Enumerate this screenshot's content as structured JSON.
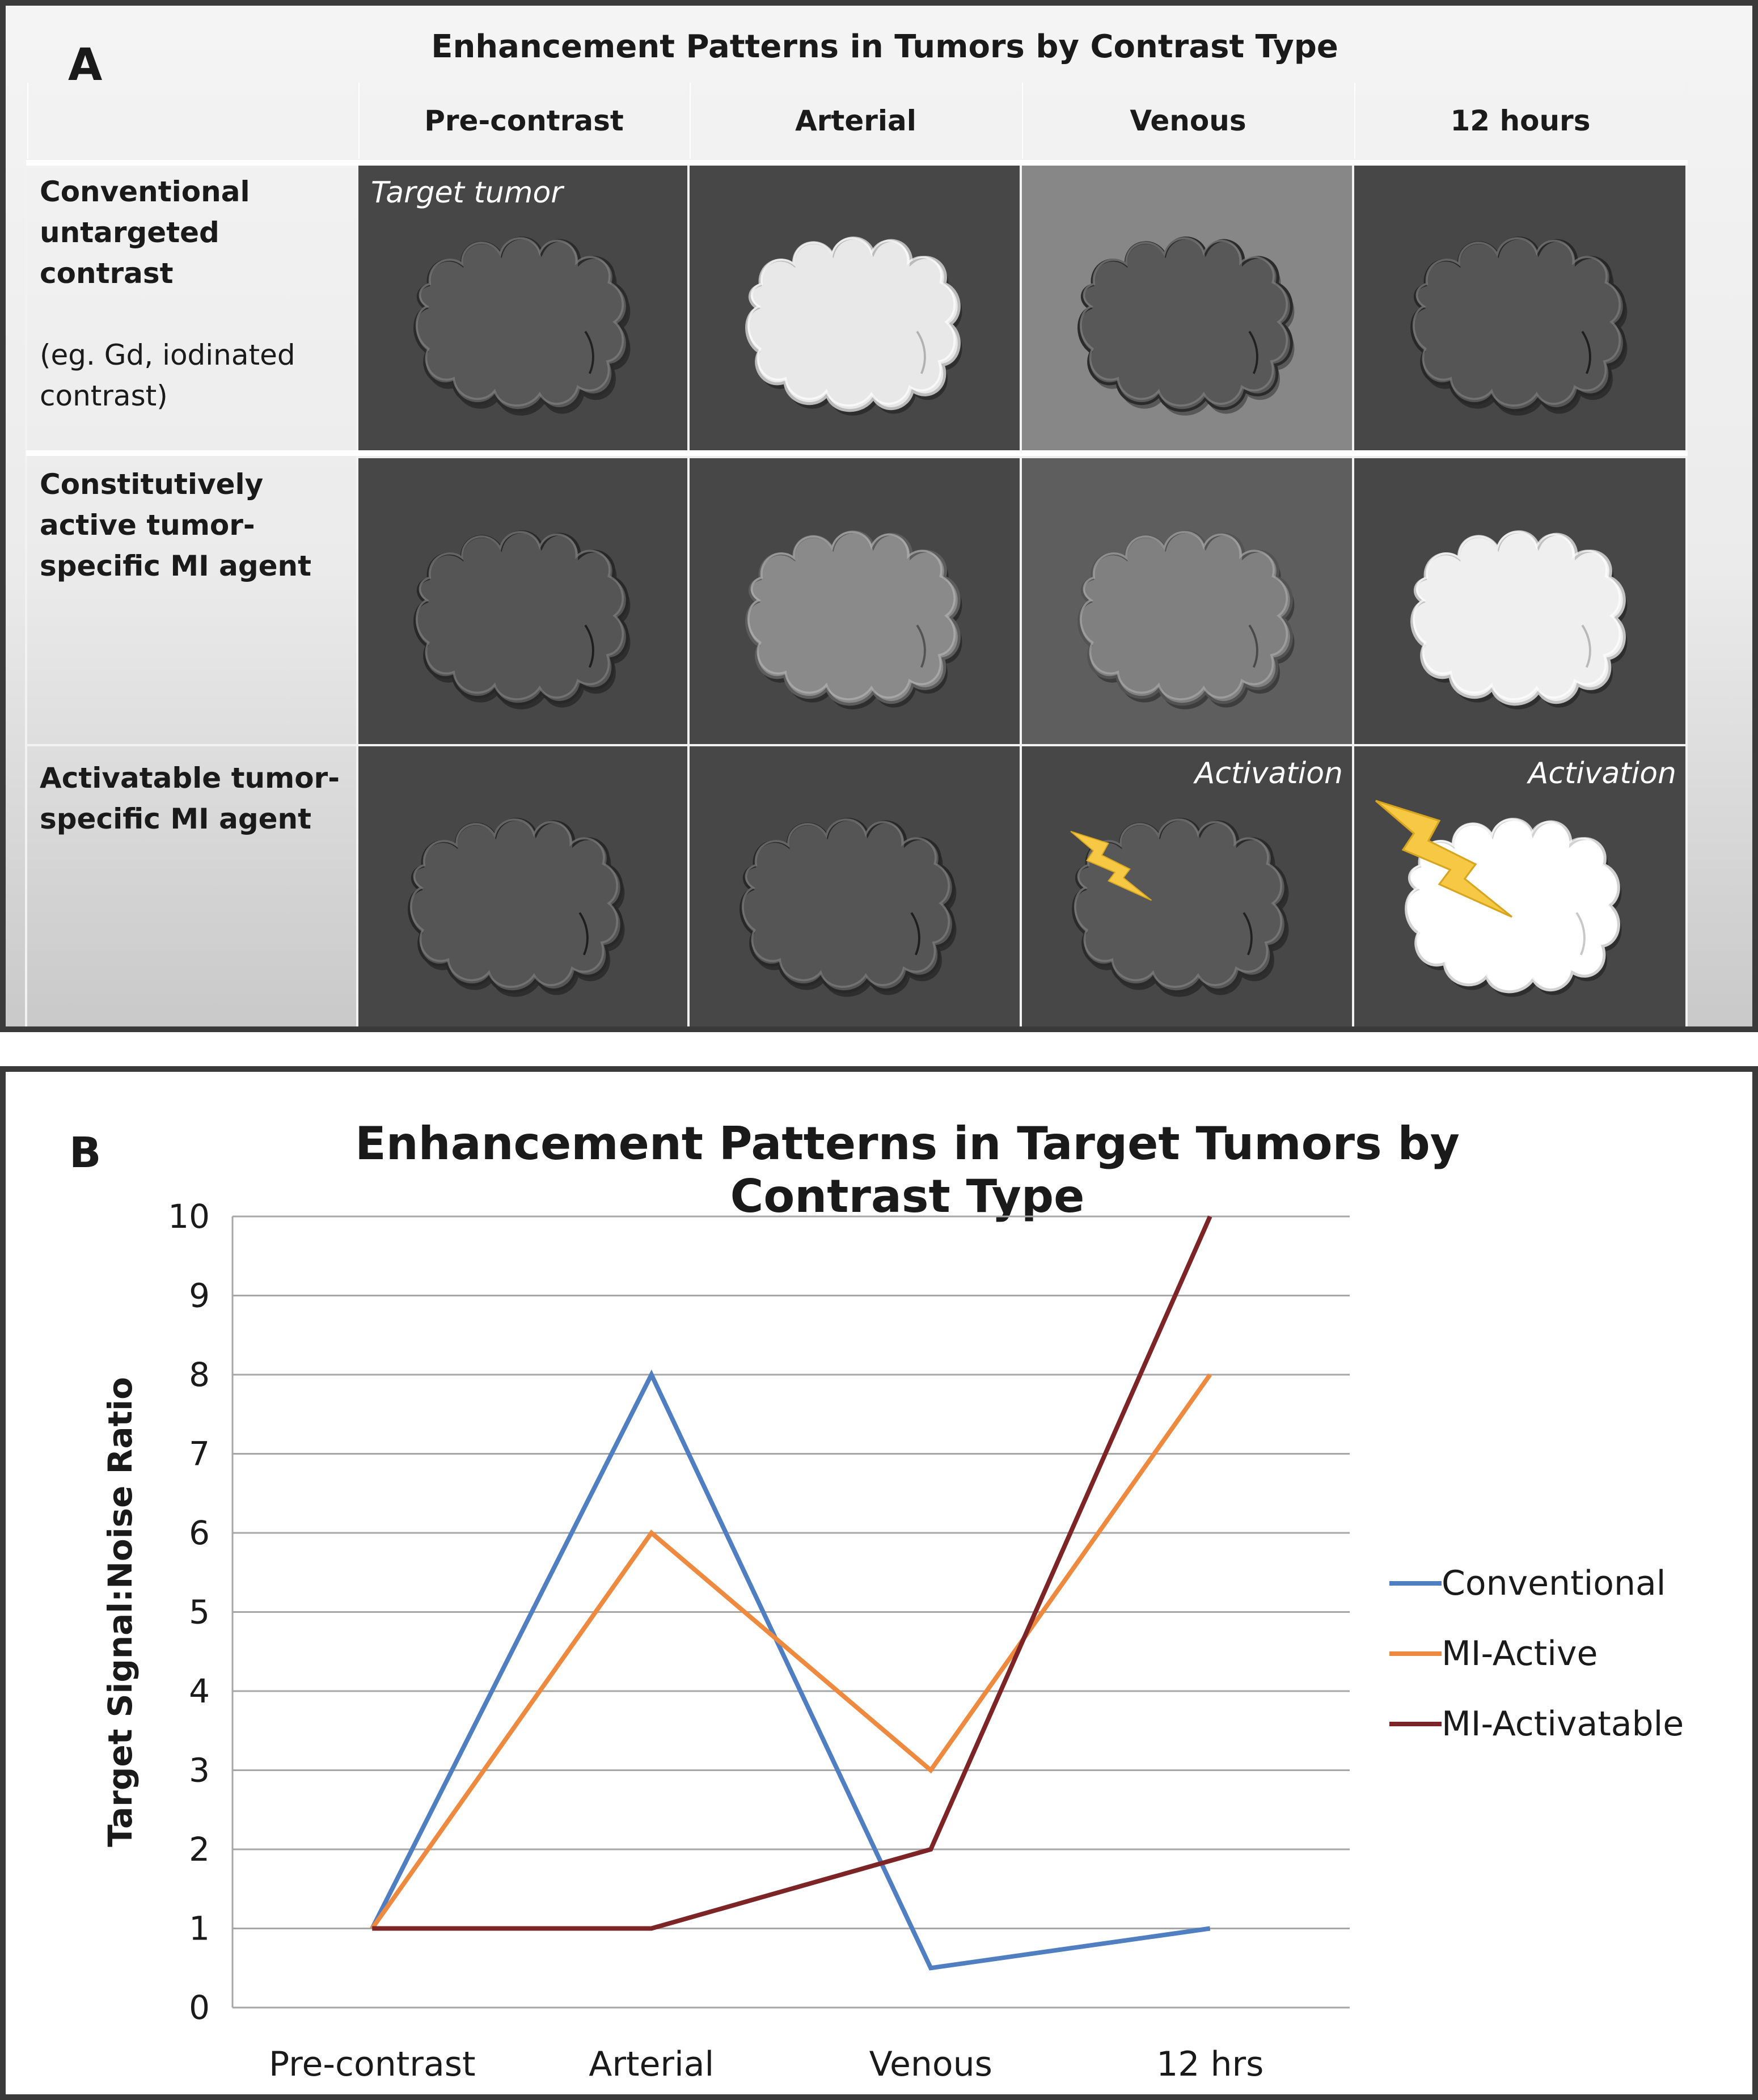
{
  "panel_a": {
    "letter": "A",
    "title": "Enhancement Patterns in Tumors by Contrast Type",
    "columns": [
      "Pre-contrast",
      "Arterial",
      "Venous",
      "12 hours"
    ],
    "rows": [
      {
        "label": "Conventional untargeted contrast",
        "sublabel": "(eg. Gd, iodinated contrast)",
        "cells": [
          {
            "bg": "#474747",
            "tumor": "#585858",
            "note": "Target tumor",
            "flash": false
          },
          {
            "bg": "#474747",
            "tumor": "#e8e8e8",
            "note": "",
            "flash": false
          },
          {
            "bg": "#878787",
            "tumor": "#585858",
            "note": "",
            "flash": false
          },
          {
            "bg": "#474747",
            "tumor": "#555555",
            "note": "",
            "flash": false
          }
        ]
      },
      {
        "label": "Constitutively active tumor-specific MI agent",
        "sublabel": "",
        "cells": [
          {
            "bg": "#474747",
            "tumor": "#555555",
            "note": "",
            "flash": false
          },
          {
            "bg": "#474747",
            "tumor": "#8a8a8a",
            "note": "",
            "flash": false
          },
          {
            "bg": "#5e5e5e",
            "tumor": "#808080",
            "note": "",
            "flash": false
          },
          {
            "bg": "#474747",
            "tumor": "#efefef",
            "note": "",
            "flash": false
          }
        ]
      },
      {
        "label": "Activatable tumor-specific MI agent",
        "sublabel": "",
        "cells": [
          {
            "bg": "#474747",
            "tumor": "#555555",
            "note": "",
            "flash": false
          },
          {
            "bg": "#474747",
            "tumor": "#555555",
            "note": "",
            "flash": false
          },
          {
            "bg": "#474747",
            "tumor": "#585858",
            "note": "Activation",
            "flash": true
          },
          {
            "bg": "#474747",
            "tumor": "#ffffff",
            "note": "Activation",
            "flash": true
          }
        ]
      }
    ]
  },
  "panel_b": {
    "letter": "B",
    "chart_data": {
      "type": "line",
      "title": "Enhancement Patterns in Target Tumors by Contrast Type",
      "xlabel": "",
      "ylabel": "Target Signal:Noise Ratio",
      "categories": [
        "Pre-contrast",
        "Arterial",
        "Venous",
        "12 hrs"
      ],
      "ylim": [
        0,
        10
      ],
      "yticks": [
        "0",
        "1",
        "2",
        "3",
        "4",
        "5",
        "6",
        "7",
        "8",
        "9",
        "10"
      ],
      "grid": true,
      "legend": "right",
      "series": [
        {
          "name": "Conventional",
          "color": "#4f7fc1",
          "values": [
            1,
            8,
            0.5,
            1
          ]
        },
        {
          "name": "MI-Active",
          "color": "#ee8a3f",
          "values": [
            1,
            6,
            3,
            8
          ]
        },
        {
          "name": "MI-Activatable",
          "color": "#7d2427",
          "values": [
            1,
            1,
            2,
            10
          ]
        }
      ]
    }
  }
}
